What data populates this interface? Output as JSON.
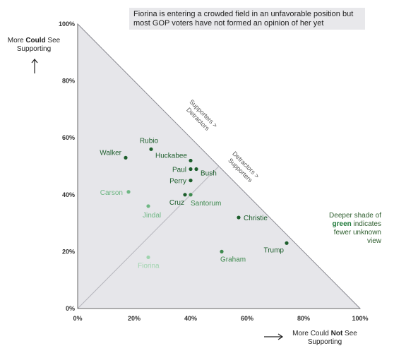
{
  "chart_data": {
    "type": "scatter",
    "title": "",
    "xlabel_parts": [
      "More Could ",
      "Not",
      " See Supporting"
    ],
    "ylabel_parts": [
      "More ",
      "Could",
      " See Supporting"
    ],
    "xlim": [
      0,
      100
    ],
    "ylim": [
      0,
      100
    ],
    "x_ticks": [
      "0%",
      "20%",
      "40%",
      "60%",
      "80%",
      "100%"
    ],
    "y_ticks": [
      "0%",
      "20%",
      "40%",
      "60%",
      "80%",
      "100%"
    ],
    "annotation_title": "Fiorina is entering a crowded field in an unfavorable position but most GOP voters have not formed an opinion of her yet",
    "region_labels": [
      {
        "lines": [
          "Supporters >",
          "Detractors"
        ]
      },
      {
        "lines": [
          "Detractors >",
          "Supporters"
        ]
      }
    ],
    "side_note_parts": [
      "Deeper shade of ",
      "green",
      " indicates fewer unknown view"
    ],
    "colors": {
      "triangle_fill": "#e6e6ea",
      "dark_green": "#1d5e2c",
      "mid_green": "#3f8a4f",
      "light_green": "#6fb784",
      "pale_green": "#9fd4ae"
    },
    "points": [
      {
        "name": "Walker",
        "x": 17,
        "y": 53,
        "shade": "dark_green"
      },
      {
        "name": "Rubio",
        "x": 26,
        "y": 56,
        "shade": "dark_green"
      },
      {
        "name": "Huckabee",
        "x": 40,
        "y": 52,
        "shade": "dark_green"
      },
      {
        "name": "Paul",
        "x": 40,
        "y": 49,
        "shade": "dark_green"
      },
      {
        "name": "Bush",
        "x": 42,
        "y": 49,
        "shade": "dark_green"
      },
      {
        "name": "Perry",
        "x": 40,
        "y": 45,
        "shade": "dark_green"
      },
      {
        "name": "Carson",
        "x": 18,
        "y": 41,
        "shade": "light_green"
      },
      {
        "name": "Cruz",
        "x": 38,
        "y": 40,
        "shade": "dark_green"
      },
      {
        "name": "Santorum",
        "x": 40,
        "y": 40,
        "shade": "mid_green"
      },
      {
        "name": "Jindal",
        "x": 25,
        "y": 36,
        "shade": "light_green"
      },
      {
        "name": "Christie",
        "x": 57,
        "y": 32,
        "shade": "dark_green"
      },
      {
        "name": "Trump",
        "x": 74,
        "y": 23,
        "shade": "dark_green"
      },
      {
        "name": "Graham",
        "x": 51,
        "y": 20,
        "shade": "mid_green"
      },
      {
        "name": "Fiorina",
        "x": 25,
        "y": 18,
        "shade": "pale_green"
      }
    ]
  }
}
